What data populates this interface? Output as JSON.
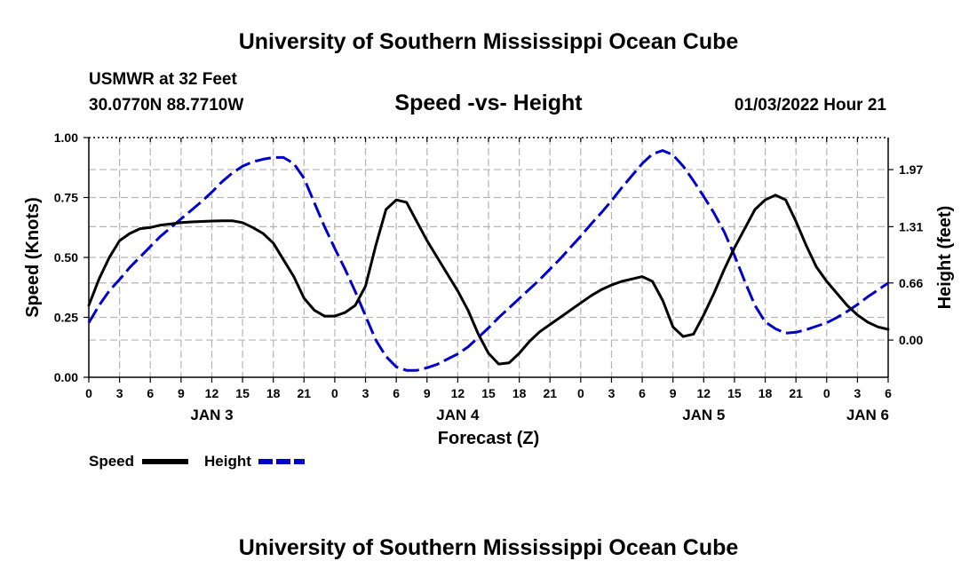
{
  "header": {
    "title_top": "University of Southern Mississippi Ocean Cube",
    "station": "USMWR at 32 Feet",
    "location": "30.0770N  88.7710W",
    "chart_title": "Speed -vs- Height",
    "datetime": "01/03/2022 Hour 21",
    "title_bottom": "University of Southern Mississippi Ocean Cube"
  },
  "legend": {
    "speed_label": "Speed",
    "height_label": "Height"
  },
  "colors": {
    "speed": "#000000",
    "height": "#0000cc",
    "grid": "#b4b4b4"
  },
  "chart_data": {
    "type": "line",
    "title": "Speed -vs- Height",
    "xlabel": "Forecast (Z)",
    "ylabel": "Speed (Knots)",
    "y2label": "Height (feet)",
    "x_hours_range": [
      0,
      78
    ],
    "ylim": [
      0,
      1
    ],
    "y2lim": [
      -0.43,
      2.34
    ],
    "xticks": {
      "hours": [
        0,
        3,
        6,
        9,
        12,
        15,
        18,
        21,
        24,
        27,
        30,
        33,
        36,
        39,
        42,
        45,
        48,
        51,
        54,
        57,
        60,
        63,
        66,
        69,
        72,
        75,
        78
      ],
      "labels": [
        "0",
        "3",
        "6",
        "9",
        "12",
        "15",
        "18",
        "21",
        "0",
        "3",
        "6",
        "9",
        "12",
        "15",
        "18",
        "21",
        "0",
        "3",
        "6",
        "9",
        "12",
        "15",
        "18",
        "21",
        "0",
        "3",
        "6"
      ]
    },
    "day_labels": [
      {
        "label": "JAN 3",
        "hour": 12
      },
      {
        "label": "JAN 4",
        "hour": 36
      },
      {
        "label": "JAN 5",
        "hour": 60
      },
      {
        "label": "JAN 6",
        "hour": 76
      }
    ],
    "yticks": {
      "values": [
        0,
        0.25,
        0.5,
        0.75,
        1
      ],
      "labels": [
        "0.00",
        "0.25",
        "0.50",
        "0.75",
        "1.00"
      ]
    },
    "y2ticks": {
      "values": [
        0,
        0.66,
        1.31,
        1.97
      ],
      "labels": [
        "0.00",
        "0.66",
        "1.31",
        "1.97"
      ]
    },
    "series": [
      {
        "name": "Speed",
        "axis": "left",
        "style": "solid",
        "x": [
          0,
          1,
          2,
          3,
          4,
          5,
          6,
          7,
          8,
          9,
          10,
          11,
          12,
          13,
          14,
          15,
          16,
          17,
          18,
          19,
          20,
          21,
          22,
          23,
          24,
          25,
          26,
          27,
          28,
          29,
          30,
          31,
          32,
          33,
          34,
          35,
          36,
          37,
          38,
          39,
          40,
          41,
          42,
          43,
          44,
          45,
          46,
          47,
          48,
          49,
          50,
          51,
          52,
          53,
          54,
          55,
          56,
          57,
          58,
          59,
          60,
          61,
          62,
          63,
          64,
          65,
          66,
          67,
          68,
          69,
          70,
          71,
          72,
          73,
          74,
          75,
          76,
          77,
          78
        ],
        "y": [
          0.3,
          0.41,
          0.5,
          0.57,
          0.6,
          0.62,
          0.625,
          0.635,
          0.64,
          0.645,
          0.648,
          0.65,
          0.652,
          0.653,
          0.653,
          0.645,
          0.625,
          0.6,
          0.56,
          0.49,
          0.42,
          0.33,
          0.28,
          0.255,
          0.255,
          0.27,
          0.3,
          0.38,
          0.55,
          0.7,
          0.74,
          0.73,
          0.65,
          0.57,
          0.5,
          0.43,
          0.36,
          0.28,
          0.18,
          0.1,
          0.055,
          0.06,
          0.1,
          0.15,
          0.19,
          0.22,
          0.25,
          0.28,
          0.31,
          0.34,
          0.365,
          0.385,
          0.4,
          0.41,
          0.42,
          0.4,
          0.32,
          0.21,
          0.17,
          0.18,
          0.26,
          0.35,
          0.45,
          0.54,
          0.62,
          0.7,
          0.74,
          0.76,
          0.74,
          0.65,
          0.55,
          0.46,
          0.4,
          0.35,
          0.3,
          0.26,
          0.23,
          0.21,
          0.2
        ]
      },
      {
        "name": "Height",
        "axis": "right",
        "style": "dashed",
        "x": [
          0,
          1,
          2,
          3,
          4,
          5,
          6,
          7,
          8,
          9,
          10,
          11,
          12,
          13,
          14,
          15,
          16,
          17,
          18,
          19,
          20,
          21,
          22,
          23,
          24,
          25,
          26,
          27,
          28,
          29,
          30,
          31,
          32,
          33,
          34,
          35,
          36,
          37,
          38,
          39,
          40,
          41,
          42,
          43,
          44,
          45,
          46,
          47,
          48,
          49,
          50,
          51,
          52,
          53,
          54,
          55,
          56,
          57,
          58,
          59,
          60,
          61,
          62,
          63,
          64,
          65,
          66,
          67,
          68,
          69,
          70,
          71,
          72,
          73,
          74,
          75,
          76,
          77,
          78
        ],
        "y": [
          0.2,
          0.4,
          0.57,
          0.7,
          0.84,
          0.96,
          1.08,
          1.2,
          1.3,
          1.4,
          1.5,
          1.6,
          1.71,
          1.83,
          1.93,
          2.01,
          2.06,
          2.09,
          2.11,
          2.11,
          2.04,
          1.87,
          1.59,
          1.31,
          1.06,
          0.82,
          0.56,
          0.28,
          0.0,
          -0.19,
          -0.31,
          -0.35,
          -0.35,
          -0.32,
          -0.28,
          -0.22,
          -0.16,
          -0.08,
          0.03,
          0.14,
          0.26,
          0.37,
          0.48,
          0.59,
          0.7,
          0.82,
          0.94,
          1.07,
          1.2,
          1.34,
          1.47,
          1.61,
          1.76,
          1.9,
          2.04,
          2.15,
          2.19,
          2.14,
          2.01,
          1.84,
          1.66,
          1.47,
          1.25,
          0.98,
          0.68,
          0.4,
          0.21,
          0.13,
          0.08,
          0.09,
          0.12,
          0.16,
          0.2,
          0.26,
          0.33,
          0.41,
          0.5,
          0.58,
          0.66
        ]
      }
    ]
  }
}
